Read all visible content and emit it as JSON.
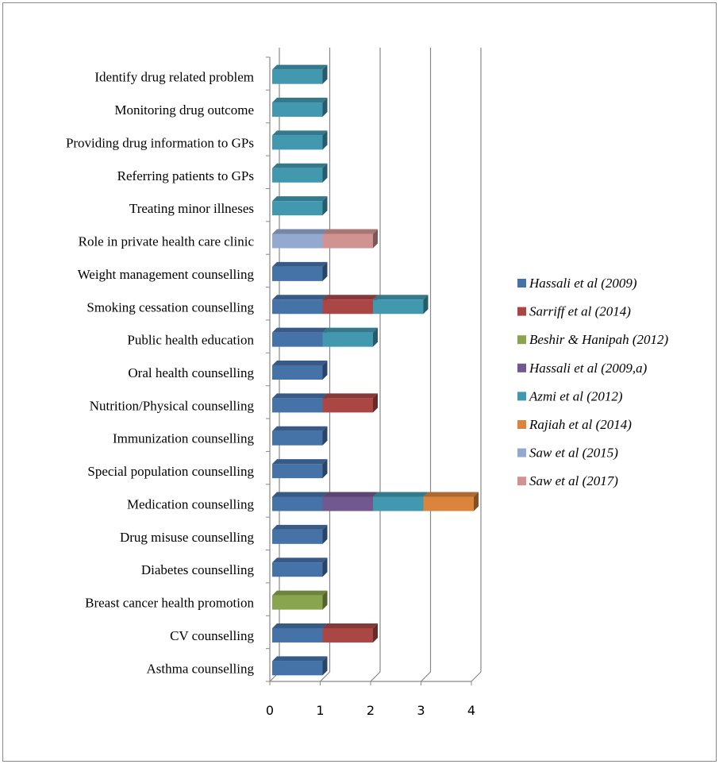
{
  "chart_data": {
    "type": "bar",
    "orientation": "horizontal",
    "stacked": true,
    "title": "",
    "xlabel": "",
    "ylabel": "",
    "xlim": [
      0,
      4
    ],
    "x_ticks": [
      "0",
      "1",
      "2",
      "3",
      "4"
    ],
    "grid": true,
    "legend_position": "right",
    "categories": [
      "Identify drug related problem",
      "Monitoring drug outcome",
      "Providing drug information to GPs",
      "Referring patients to GPs",
      "Treating minor illneses",
      "Role in private health care clinic",
      "Weight management counselling",
      "Smoking cessation counselling",
      "Public health education",
      "Oral health counselling",
      "Nutrition/Physical counselling",
      "Immunization counselling",
      "Special population counselling",
      "Medication counselling",
      "Drug misuse counselling",
      "Diabetes counselling",
      "Breast cancer health promotion",
      "CV counselling",
      "Asthma counselling"
    ],
    "series": [
      {
        "name": "Hassali et al (2009)",
        "color": "#4572A7",
        "values": [
          0,
          0,
          0,
          0,
          0,
          0,
          1,
          1,
          1,
          1,
          1,
          1,
          1,
          1,
          1,
          1,
          0,
          1,
          1
        ]
      },
      {
        "name": "Sarriff et al (2014)",
        "color": "#AA4643",
        "values": [
          0,
          0,
          0,
          0,
          0,
          0,
          0,
          1,
          0,
          0,
          1,
          0,
          0,
          0,
          0,
          0,
          0,
          1,
          0
        ]
      },
      {
        "name": "Beshir & Hanipah (2012)",
        "color": "#89A54E",
        "values": [
          0,
          0,
          0,
          0,
          0,
          0,
          0,
          0,
          0,
          0,
          0,
          0,
          0,
          0,
          0,
          0,
          1,
          0,
          0
        ]
      },
      {
        "name": "Hassali et al (2009,a)",
        "color": "#71588F",
        "values": [
          0,
          0,
          0,
          0,
          0,
          0,
          0,
          0,
          0,
          0,
          0,
          0,
          0,
          1,
          0,
          0,
          0,
          0,
          0
        ]
      },
      {
        "name": "Azmi et al (2012)",
        "color": "#4198AF",
        "values": [
          1,
          1,
          1,
          1,
          1,
          0,
          0,
          1,
          1,
          0,
          0,
          0,
          0,
          1,
          0,
          0,
          0,
          0,
          0
        ]
      },
      {
        "name": "Rajiah et al (2014)",
        "color": "#DB843D",
        "values": [
          0,
          0,
          0,
          0,
          0,
          0,
          0,
          0,
          0,
          0,
          0,
          0,
          0,
          1,
          0,
          0,
          0,
          0,
          0
        ]
      },
      {
        "name": "Saw et al (2015)",
        "color": "#93A9CF",
        "values": [
          0,
          0,
          0,
          0,
          0,
          1,
          0,
          0,
          0,
          0,
          0,
          0,
          0,
          0,
          0,
          0,
          0,
          0,
          0
        ]
      },
      {
        "name": "Saw et al (2017)",
        "color": "#D19392",
        "values": [
          0,
          0,
          0,
          0,
          0,
          1,
          0,
          0,
          0,
          0,
          0,
          0,
          0,
          0,
          0,
          0,
          0,
          0,
          0
        ]
      }
    ]
  }
}
